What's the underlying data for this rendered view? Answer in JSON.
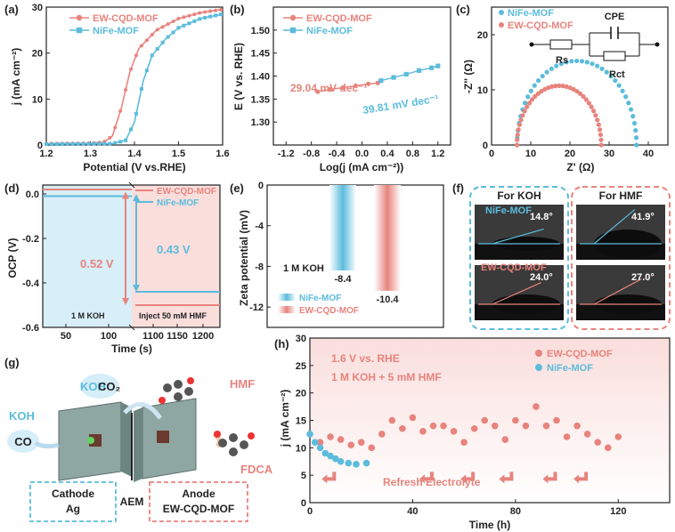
{
  "colors": {
    "red": "#e8837d",
    "blue": "#5bbcdc",
    "pinkbg": "#f9dedc",
    "bluebg": "#d8eef8"
  },
  "panels": {
    "a": "(a)",
    "b": "(b)",
    "c": "(c)",
    "d": "(d)",
    "e": "(e)",
    "f": "(f)",
    "g": "(g)",
    "h": "(h)"
  },
  "chart_data": [
    {
      "panel": "a",
      "type": "line",
      "xlabel": "Potential (V vs.RHE)",
      "ylabel": "j (mA cm⁻²)",
      "xlim": [
        1.2,
        1.6
      ],
      "ylim": [
        0,
        30
      ],
      "xticks": [
        "1.2",
        "1.3",
        "1.4",
        "1.5",
        "1.6"
      ],
      "yticks": [
        "0",
        "10",
        "20",
        "30"
      ],
      "legend": "top-left",
      "series": [
        {
          "name": "EW-CQD-MOF",
          "color": "red",
          "points": [
            [
              1.2,
              0.3
            ],
            [
              1.3,
              0.4
            ],
            [
              1.33,
              0.6
            ],
            [
              1.35,
              2
            ],
            [
              1.37,
              8
            ],
            [
              1.39,
              16
            ],
            [
              1.41,
              21
            ],
            [
              1.45,
              25
            ],
            [
              1.5,
              27.5
            ],
            [
              1.55,
              28.8
            ],
            [
              1.6,
              29.5
            ]
          ]
        },
        {
          "name": "NiFe-MOF",
          "color": "blue",
          "points": [
            [
              1.2,
              0.2
            ],
            [
              1.35,
              0.3
            ],
            [
              1.38,
              1
            ],
            [
              1.4,
              5
            ],
            [
              1.42,
              14
            ],
            [
              1.44,
              19.5
            ],
            [
              1.47,
              23
            ],
            [
              1.5,
              25.5
            ],
            [
              1.55,
              27.5
            ],
            [
              1.6,
              28.5
            ]
          ]
        }
      ]
    },
    {
      "panel": "b",
      "type": "line",
      "xlabel": "Log(j (mA cm⁻²))",
      "ylabel": "E (V vs. RHE)",
      "xlim": [
        -1.4,
        1.4
      ],
      "ylim": [
        1.25,
        1.55
      ],
      "xticks": [
        "-1.2",
        "-0.8",
        "-0.4",
        "0.0",
        "0.4",
        "0.8",
        "1.2"
      ],
      "yticks": [
        "1.30",
        "1.35",
        "1.40",
        "1.45",
        "1.50"
      ],
      "legend": "top-left",
      "series": [
        {
          "name": "EW-CQD-MOF",
          "color": "red",
          "points": [
            [
              -0.7,
              1.366
            ],
            [
              -0.5,
              1.371
            ],
            [
              -0.3,
              1.375
            ],
            [
              -0.1,
              1.379
            ],
            [
              0.1,
              1.383
            ],
            [
              0.25,
              1.385
            ]
          ]
        },
        {
          "name": "NiFe-MOF",
          "color": "blue",
          "points": [
            [
              0.3,
              1.39
            ],
            [
              0.5,
              1.397
            ],
            [
              0.7,
              1.404
            ],
            [
              0.9,
              1.412
            ],
            [
              1.1,
              1.418
            ],
            [
              1.2,
              1.422
            ]
          ]
        }
      ],
      "annotations": [
        {
          "text": "29.04 mV dec⁻¹",
          "color": "red"
        },
        {
          "text": "39.81 mV dec⁻¹",
          "color": "blue"
        }
      ]
    },
    {
      "panel": "c",
      "type": "scatter",
      "xlabel": "Z' (Ω)",
      "ylabel": "-Z'' (Ω)",
      "xlim": [
        0,
        45
      ],
      "ylim": [
        0,
        25
      ],
      "xticks": [
        "0",
        "10",
        "20",
        "30",
        "40"
      ],
      "yticks": [
        "0",
        "10",
        "20"
      ],
      "legend": "top-left",
      "series": [
        {
          "name": "NiFe-MOF",
          "color": "blue",
          "center": 21.75,
          "radius": 15.25
        },
        {
          "name": "EW-CQD-MOF",
          "color": "red",
          "center": 17.25,
          "radius": 10.75
        }
      ],
      "circuit": {
        "label": "CPE",
        "rs": "Rs",
        "rct": "Rct"
      }
    },
    {
      "panel": "d",
      "type": "line",
      "xlabel": "Time (s)",
      "ylabel": "OCP (V)",
      "ylim": [
        -0.6,
        0.0
      ],
      "yticks": [
        "0.0",
        "-0.2",
        "-0.4",
        "-0.6"
      ],
      "xticks": [
        "50",
        "100",
        "1100",
        "1150",
        "1200"
      ],
      "series": [
        {
          "name": "EW-CQD-MOF",
          "color": "red",
          "before": 0.02,
          "after": -0.5
        },
        {
          "name": "NiFe-MOF",
          "color": "blue",
          "before": -0.01,
          "after": -0.44
        }
      ],
      "annotations": {
        "red": "0.52 V",
        "blue": "0.43 V",
        "koh": "1 M KOH",
        "hmf": "Inject 50 mM HMF"
      }
    },
    {
      "panel": "e",
      "type": "bar",
      "ylabel": "Zeta potential (mV)",
      "ylim": [
        -14,
        0
      ],
      "yticks": [
        "0",
        "-4",
        "-8",
        "-12"
      ],
      "series": [
        {
          "name": "NiFe-MOF",
          "color": "blue",
          "value": -8.4,
          "label": "-8.4"
        },
        {
          "name": "EW-CQD-MOF",
          "color": "red",
          "value": -10.4,
          "label": "-10.4"
        }
      ],
      "note": "1 M KOH"
    },
    {
      "panel": "h",
      "type": "scatter",
      "xlabel": "Time (h)",
      "ylabel": "j (mA cm⁻²)",
      "xlim": [
        0,
        140
      ],
      "ylim": [
        0,
        30
      ],
      "xticks": [
        "0",
        "40",
        "80",
        "120"
      ],
      "yticks": [
        "0",
        "5",
        "10",
        "15",
        "20",
        "25",
        "30"
      ],
      "legend": "top-right",
      "series": [
        {
          "name": "EW-CQD-MOF",
          "color": "red",
          "points": [
            [
              4,
              11
            ],
            [
              8,
              12
            ],
            [
              12,
              11.5
            ],
            [
              16,
              10.5
            ],
            [
              20,
              11
            ],
            [
              24,
              10
            ],
            [
              28,
              12.5
            ],
            [
              32,
              15
            ],
            [
              36,
              13.5
            ],
            [
              40,
              15.5
            ],
            [
              44,
              13
            ],
            [
              48,
              14
            ],
            [
              52,
              14
            ],
            [
              56,
              13
            ],
            [
              60,
              11
            ],
            [
              64,
              13.5
            ],
            [
              68,
              15
            ],
            [
              72,
              14
            ],
            [
              76,
              11.5
            ],
            [
              80,
              15
            ],
            [
              84,
              14
            ],
            [
              88,
              17.5
            ],
            [
              92,
              14
            ],
            [
              96,
              15
            ],
            [
              100,
              12
            ],
            [
              104,
              14
            ],
            [
              108,
              12.5
            ],
            [
              112,
              11
            ],
            [
              116,
              10
            ],
            [
              120,
              12
            ]
          ]
        },
        {
          "name": "NiFe-MOF",
          "color": "blue",
          "points": [
            [
              0,
              12.5
            ],
            [
              2,
              11
            ],
            [
              4,
              10
            ],
            [
              6,
              9
            ],
            [
              8,
              8.5
            ],
            [
              10,
              8
            ],
            [
              12,
              7.5
            ],
            [
              15,
              7.2
            ],
            [
              18,
              7
            ],
            [
              22,
              7.2
            ]
          ]
        }
      ],
      "annotations": {
        "cond1": "1.6 V vs. RHE",
        "cond2": "1 M KOH + 5 mM HMF",
        "refresh": "Refresh Electrolyte"
      }
    }
  ],
  "f": {
    "koh": "For KOH",
    "hmf": "For HMF",
    "nife": "NiFe-MOF",
    "ew": "EW-CQD-MOF",
    "angles": [
      "14.8°",
      "41.9°",
      "24.0°",
      "27.0°"
    ]
  },
  "g": {
    "koh1": "KOH",
    "co2": "CO₂",
    "koh2": "KOH",
    "co": "CO",
    "hmf": "HMF",
    "fdca": "FDCA",
    "aem": "AEM",
    "cathode1": "Cathode",
    "cathode2": "Ag",
    "anode1": "Anode",
    "anode2": "EW-CQD-MOF"
  }
}
